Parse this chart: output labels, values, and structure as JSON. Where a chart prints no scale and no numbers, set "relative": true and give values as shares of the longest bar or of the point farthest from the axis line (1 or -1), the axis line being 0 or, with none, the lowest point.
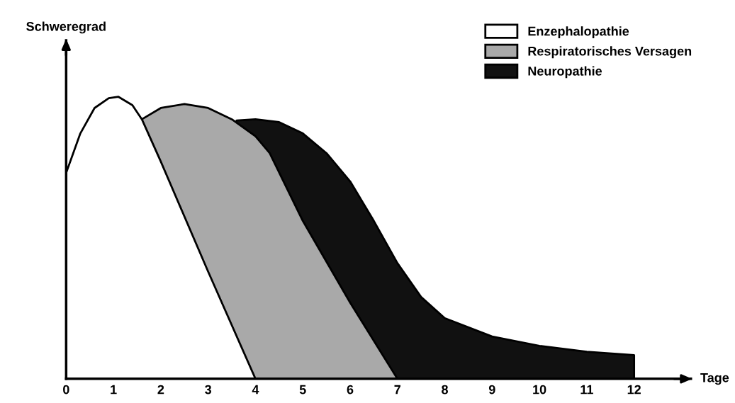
{
  "chart_data": {
    "type": "area",
    "relative": true,
    "xlabel": "Tage",
    "ylabel": "Schweregrad",
    "xlim": [
      0,
      13.2
    ],
    "xticks": [
      0,
      1,
      2,
      3,
      4,
      5,
      6,
      7,
      8,
      9,
      10,
      11,
      12
    ],
    "legend": "top right",
    "grid": false,
    "series": [
      {
        "name": "Neuropathie",
        "color": "#111111",
        "x": [
          3.6,
          4,
          4.5,
          5,
          5.5,
          6,
          6.5,
          7,
          7.5,
          8,
          9,
          10,
          11,
          12
        ],
        "values": [
          0.916,
          0.92,
          0.91,
          0.87,
          0.8,
          0.7,
          0.56,
          0.41,
          0.29,
          0.215,
          0.15,
          0.117,
          0.096,
          0.084
        ]
      },
      {
        "name": "Respiratorisches Versagen",
        "color": "#a9a9a9",
        "x": [
          1.6,
          2,
          2.5,
          3,
          3.5,
          4,
          4.3,
          5,
          6,
          7
        ],
        "values": [
          0.92,
          0.96,
          0.974,
          0.96,
          0.92,
          0.86,
          0.8,
          0.56,
          0.27,
          0
        ]
      },
      {
        "name": "Enzephalopathie",
        "color": "#ffffff",
        "x": [
          0,
          0.3,
          0.6,
          0.9,
          1.1,
          1.4,
          1.6,
          2,
          3,
          4
        ],
        "values": [
          0.73,
          0.87,
          0.96,
          0.995,
          1.0,
          0.97,
          0.92,
          0.77,
          0.38,
          0
        ]
      }
    ]
  }
}
